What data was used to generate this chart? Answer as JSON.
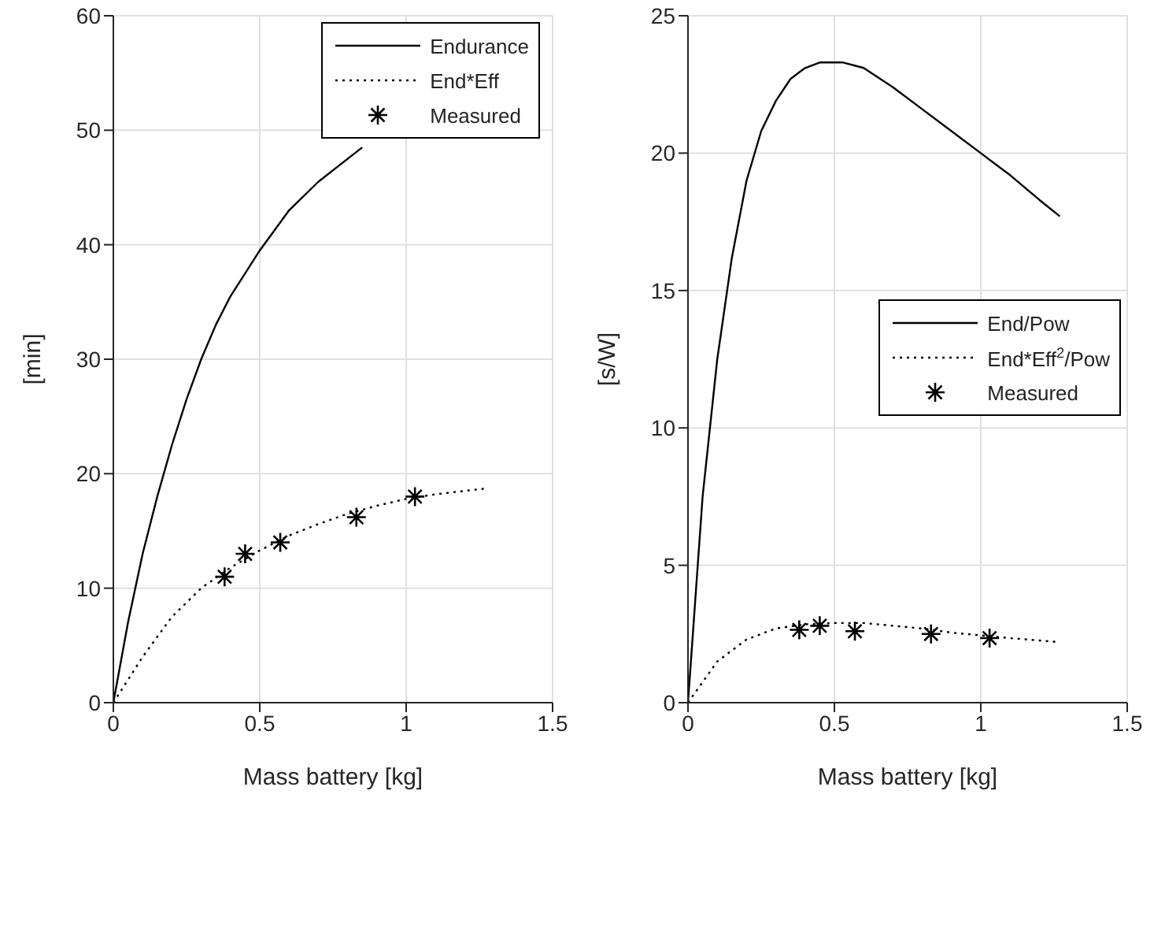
{
  "chart_data": [
    {
      "type": "line",
      "xlabel": "Mass battery [kg]",
      "ylabel": "[min]",
      "xlim": [
        0,
        1.5
      ],
      "xticks": [
        0,
        0.5,
        1,
        1.5
      ],
      "ylim": [
        0,
        60
      ],
      "yticks": [
        0,
        10,
        20,
        30,
        40,
        50,
        60
      ],
      "grid": true,
      "legend": "top right",
      "series": [
        {
          "name": "Endurance",
          "type": "line",
          "color": "#000000",
          "line_style": "solid",
          "marker": "none",
          "x": [
            0,
            0.05,
            0.1,
            0.15,
            0.2,
            0.25,
            0.3,
            0.35,
            0.4,
            0.5,
            0.6,
            0.7,
            0.8,
            0.85
          ],
          "values": [
            0,
            7,
            13,
            18,
            22.5,
            26.5,
            30,
            33,
            35.5,
            39.5,
            43,
            45.5,
            47.5,
            48.5
          ]
        },
        {
          "name": "End*Eff",
          "type": "line",
          "color": "#000000",
          "line_style": "dotted",
          "marker": "none",
          "x": [
            0,
            0.1,
            0.2,
            0.3,
            0.4,
            0.5,
            0.6,
            0.7,
            0.8,
            0.9,
            1.0,
            1.1,
            1.2,
            1.27
          ],
          "values": [
            0,
            4,
            7.5,
            10,
            11.8,
            13.3,
            14.6,
            15.6,
            16.5,
            17.2,
            17.8,
            18.2,
            18.5,
            18.7
          ]
        },
        {
          "name": "Measured",
          "type": "scatter",
          "color": "#000000",
          "marker": "cross",
          "x": [
            0.38,
            0.45,
            0.57,
            0.83,
            1.03
          ],
          "values": [
            11,
            13,
            14,
            16.2,
            18
          ]
        }
      ]
    },
    {
      "type": "line",
      "xlabel": "Mass battery [kg]",
      "ylabel": "[s/W]",
      "xlim": [
        0,
        1.5
      ],
      "xticks": [
        0,
        0.5,
        1,
        1.5
      ],
      "ylim": [
        0,
        25
      ],
      "yticks": [
        0,
        5,
        10,
        15,
        20,
        25
      ],
      "grid": true,
      "legend": "right",
      "series": [
        {
          "name": "End/Pow",
          "type": "line",
          "color": "#000000",
          "line_style": "solid",
          "marker": "none",
          "x": [
            0,
            0.02,
            0.05,
            0.1,
            0.15,
            0.2,
            0.25,
            0.3,
            0.35,
            0.4,
            0.45,
            0.53,
            0.6,
            0.7,
            0.8,
            0.9,
            1.0,
            1.1,
            1.2,
            1.27
          ],
          "values": [
            0,
            3,
            7.5,
            12.5,
            16.2,
            19,
            20.8,
            21.9,
            22.7,
            23.1,
            23.3,
            23.3,
            23.1,
            22.4,
            21.6,
            20.8,
            20,
            19.2,
            18.3,
            17.7
          ]
        },
        {
          "name": "End*Eff$^{2}$/Pow",
          "type": "line",
          "color": "#000000",
          "line_style": "dotted",
          "marker": "none",
          "x": [
            0,
            0.1,
            0.2,
            0.3,
            0.4,
            0.5,
            0.6,
            0.7,
            0.8,
            0.9,
            1.0,
            1.1,
            1.27
          ],
          "values": [
            0,
            1.5,
            2.3,
            2.7,
            2.85,
            2.9,
            2.9,
            2.8,
            2.7,
            2.55,
            2.45,
            2.35,
            2.2
          ]
        },
        {
          "name": "Measured",
          "type": "scatter",
          "color": "#000000",
          "marker": "cross",
          "x": [
            0.38,
            0.45,
            0.57,
            0.83,
            1.03
          ],
          "values": [
            2.65,
            2.8,
            2.6,
            2.5,
            2.35
          ]
        }
      ]
    }
  ]
}
